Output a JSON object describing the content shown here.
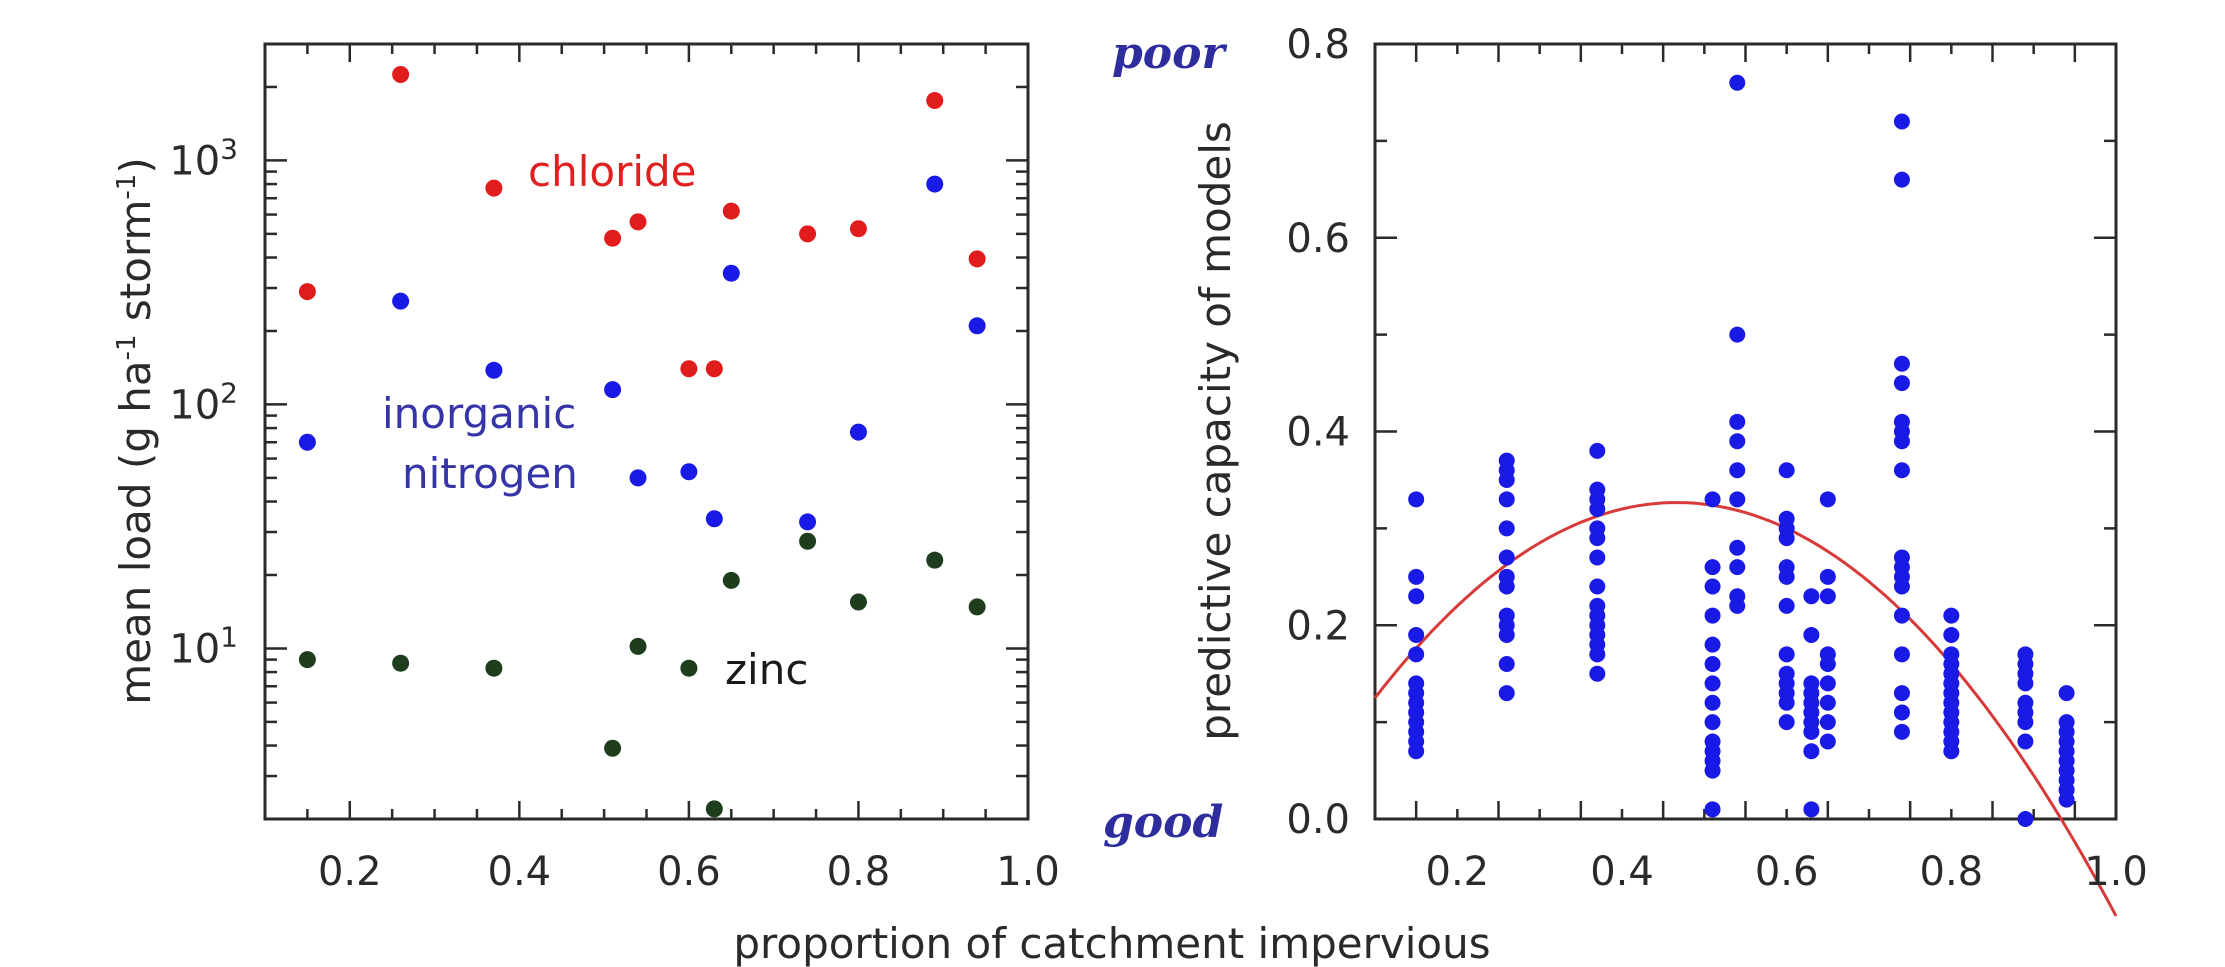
{
  "figure": {
    "shared_xlabel": "proportion of catchment impervious"
  },
  "chart_data": [
    {
      "type": "scatter",
      "title": "",
      "xlabel": "",
      "ylabel_main": "mean load (g ha",
      "ylabel_sup1": "-1",
      "ylabel_mid": " storm",
      "ylabel_sup2": "-1",
      "ylabel_end": ")",
      "xlim": [
        0.1,
        1.0
      ],
      "ylim": [
        2.0,
        3000
      ],
      "yscale": "log",
      "x_ticks": [
        0.2,
        0.4,
        0.6,
        0.8,
        1.0
      ],
      "x_tick_labels": [
        "0.2",
        "0.4",
        "0.6",
        "0.8",
        "1.0"
      ],
      "y_ticks": [
        10,
        100,
        1000
      ],
      "y_tick_base": "10",
      "y_tick_exponents": [
        "1",
        "2",
        "3"
      ],
      "annotations": [
        {
          "text": "chloride",
          "color": "#e02020"
        },
        {
          "text": "inorganic",
          "color": "#3535a8"
        },
        {
          "text": "nitrogen",
          "color": "#3535a8"
        },
        {
          "text": "zinc",
          "color": "#1a1a1a"
        }
      ],
      "series": [
        {
          "color": "#e01c1c",
          "points": [
            [
              0.15,
              290
            ],
            [
              0.26,
              2250
            ],
            [
              0.37,
              770
            ],
            [
              0.51,
              480
            ],
            [
              0.54,
              560
            ],
            [
              0.6,
              140
            ],
            [
              0.63,
              140
            ],
            [
              0.65,
              620
            ],
            [
              0.74,
              500
            ],
            [
              0.8,
              525
            ],
            [
              0.89,
              1760
            ],
            [
              0.94,
              395
            ]
          ]
        },
        {
          "color": "#1a1ae6",
          "points": [
            [
              0.15,
              70
            ],
            [
              0.26,
              265
            ],
            [
              0.37,
              138
            ],
            [
              0.51,
              115
            ],
            [
              0.54,
              50
            ],
            [
              0.6,
              53
            ],
            [
              0.63,
              34
            ],
            [
              0.65,
              345
            ],
            [
              0.74,
              33
            ],
            [
              0.8,
              77
            ],
            [
              0.89,
              800
            ],
            [
              0.94,
              210
            ]
          ]
        },
        {
          "color": "#1d3d1d",
          "points": [
            [
              0.15,
              9.0
            ],
            [
              0.26,
              8.7
            ],
            [
              0.37,
              8.3
            ],
            [
              0.51,
              3.9
            ],
            [
              0.54,
              10.2
            ],
            [
              0.6,
              8.3
            ],
            [
              0.63,
              2.2
            ],
            [
              0.65,
              19
            ],
            [
              0.74,
              27.5
            ],
            [
              0.8,
              15.5
            ],
            [
              0.89,
              23
            ],
            [
              0.94,
              14.8
            ]
          ]
        }
      ]
    },
    {
      "type": "scatter",
      "title": "",
      "xlabel": "",
      "ylabel": "predictive capacity of models",
      "xlim": [
        0.1,
        1.0
      ],
      "ylim": [
        0.0,
        0.8
      ],
      "x_ticks": [
        0.2,
        0.4,
        0.6,
        0.8,
        1.0
      ],
      "x_tick_labels": [
        "0.2",
        "0.4",
        "0.6",
        "0.8",
        "1.0"
      ],
      "y_ticks": [
        0.0,
        0.2,
        0.4,
        0.6,
        0.8
      ],
      "y_tick_labels": [
        "0.0",
        "0.2",
        "0.4",
        "0.6",
        "0.8"
      ],
      "quality_labels": {
        "top": "poor",
        "bottom": "good"
      },
      "point_color": "#1a1ae6",
      "fit_color": "#d83a3a",
      "fit": {
        "type": "quadratic",
        "a": -1.5,
        "b": 1.4,
        "c": 0.0
      },
      "groups": [
        {
          "x": 0.15,
          "y": [
            0.33,
            0.25,
            0.23,
            0.19,
            0.17,
            0.14,
            0.13,
            0.12,
            0.11,
            0.1,
            0.09,
            0.08,
            0.07
          ]
        },
        {
          "x": 0.26,
          "y": [
            0.37,
            0.36,
            0.35,
            0.33,
            0.3,
            0.27,
            0.25,
            0.24,
            0.21,
            0.2,
            0.19,
            0.16,
            0.13
          ]
        },
        {
          "x": 0.37,
          "y": [
            0.38,
            0.34,
            0.33,
            0.32,
            0.3,
            0.29,
            0.27,
            0.24,
            0.22,
            0.21,
            0.2,
            0.19,
            0.18,
            0.17,
            0.15
          ]
        },
        {
          "x": 0.51,
          "y": [
            0.33,
            0.26,
            0.24,
            0.21,
            0.18,
            0.16,
            0.14,
            0.12,
            0.1,
            0.08,
            0.07,
            0.06,
            0.05,
            0.01
          ]
        },
        {
          "x": 0.54,
          "y": [
            0.76,
            0.5,
            0.41,
            0.39,
            0.36,
            0.33,
            0.28,
            0.26,
            0.23,
            0.22
          ]
        },
        {
          "x": 0.6,
          "y": [
            0.36,
            0.31,
            0.3,
            0.29,
            0.26,
            0.25,
            0.22,
            0.17,
            0.15,
            0.14,
            0.13,
            0.12,
            0.1
          ]
        },
        {
          "x": 0.63,
          "y": [
            0.23,
            0.19,
            0.14,
            0.13,
            0.12,
            0.11,
            0.1,
            0.09,
            0.07,
            0.01
          ]
        },
        {
          "x": 0.65,
          "y": [
            0.33,
            0.25,
            0.23,
            0.17,
            0.16,
            0.14,
            0.12,
            0.1,
            0.08
          ]
        },
        {
          "x": 0.74,
          "y": [
            0.72,
            0.66,
            0.47,
            0.45,
            0.41,
            0.4,
            0.39,
            0.36,
            0.27,
            0.26,
            0.25,
            0.24,
            0.21,
            0.17,
            0.13,
            0.11,
            0.09
          ]
        },
        {
          "x": 0.8,
          "y": [
            0.21,
            0.19,
            0.17,
            0.16,
            0.15,
            0.14,
            0.13,
            0.12,
            0.11,
            0.1,
            0.09,
            0.08,
            0.07
          ]
        },
        {
          "x": 0.89,
          "y": [
            0.17,
            0.16,
            0.15,
            0.14,
            0.12,
            0.11,
            0.1,
            0.08,
            0.0
          ]
        },
        {
          "x": 0.94,
          "y": [
            0.13,
            0.1,
            0.09,
            0.08,
            0.07,
            0.06,
            0.05,
            0.04,
            0.03,
            0.02
          ]
        }
      ]
    }
  ]
}
